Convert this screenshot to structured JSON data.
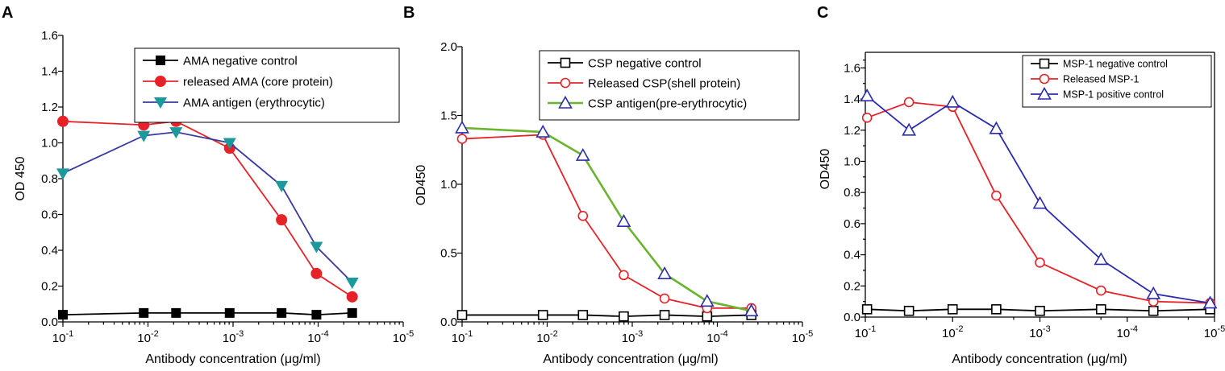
{
  "chart_data": [
    {
      "type": "line",
      "panel_label": "A",
      "xlabel": "Antibody concentration (μg/ml)",
      "ylabel": "OD 450",
      "xscale": "log-reversed",
      "xlim_exp": [
        -1,
        -5
      ],
      "x_tick_labels": [
        "10-1",
        "10-2",
        "10-3",
        "10-4",
        "10-5"
      ],
      "ylim": [
        0,
        1.6
      ],
      "y_ticks": [
        0.0,
        0.2,
        0.4,
        0.6,
        0.8,
        1.0,
        1.2,
        1.4,
        1.6
      ],
      "y_tick_labels": [
        "0.0",
        "0.2",
        "0.4",
        "0.6",
        "0.8",
        "1.0",
        "1.2",
        "1.4",
        "1.6"
      ],
      "legend_position": "top-right",
      "series": [
        {
          "name": "AMA negative control",
          "color": "#000000",
          "marker": "square-filled",
          "x_exp": [
            -1,
            -1.95,
            -2.33,
            -2.96,
            -3.57,
            -3.98,
            -4.4
          ],
          "values": [
            0.04,
            0.05,
            0.05,
            0.05,
            0.05,
            0.04,
            0.05
          ]
        },
        {
          "name": "released AMA (core protein)",
          "color": "#e62228",
          "marker": "circle-filled",
          "x_exp": [
            -1,
            -1.95,
            -2.33,
            -2.96,
            -3.57,
            -3.98,
            -4.4
          ],
          "values": [
            1.12,
            1.1,
            1.12,
            0.97,
            0.57,
            0.27,
            0.14
          ]
        },
        {
          "name": "AMA antigen (erythrocytic)",
          "color": "#3a3aa0",
          "marker": "triangle-down-filled",
          "marker_color": "#1a9a9a",
          "x_exp": [
            -1,
            -1.95,
            -2.33,
            -2.96,
            -3.57,
            -3.98,
            -4.4
          ],
          "values": [
            0.83,
            1.04,
            1.06,
            1.0,
            0.76,
            0.42,
            0.22
          ]
        }
      ]
    },
    {
      "type": "line",
      "panel_label": "B",
      "xlabel": "Antibody concentration (μg/ml)",
      "ylabel": "OD450",
      "xscale": "log-reversed",
      "xlim_exp": [
        -1,
        -5
      ],
      "x_tick_labels": [
        "10-1",
        "10-2",
        "10-3",
        "10-4",
        "10-5"
      ],
      "ylim": [
        0,
        2.0
      ],
      "y_ticks": [
        0.0,
        0.5,
        1.0,
        1.5,
        2.0
      ],
      "y_tick_labels": [
        "0.0",
        "0.5",
        "1.0",
        "1.5",
        "2.0"
      ],
      "legend_position": "top-right",
      "series": [
        {
          "name": "CSP negative control",
          "color": "#000000",
          "marker": "square-open",
          "x_exp": [
            -1,
            -1.95,
            -2.42,
            -2.9,
            -3.38,
            -3.88,
            -4.4
          ],
          "values": [
            0.05,
            0.05,
            0.05,
            0.04,
            0.05,
            0.04,
            0.05
          ]
        },
        {
          "name": "Released CSP(shell protein)",
          "color": "#e62228",
          "marker": "circle-open",
          "x_exp": [
            -1,
            -1.95,
            -2.42,
            -2.9,
            -3.38,
            -3.88,
            -4.4
          ],
          "values": [
            1.33,
            1.36,
            0.77,
            0.34,
            0.17,
            0.1,
            0.1
          ]
        },
        {
          "name": "CSP antigen(pre-erythrocytic)",
          "color": "#6ab42d",
          "marker": "triangle-up-open",
          "marker_color": "#2b2bb0",
          "x_exp": [
            -1,
            -1.95,
            -2.42,
            -2.9,
            -3.38,
            -3.88,
            -4.4
          ],
          "values": [
            1.41,
            1.38,
            1.21,
            0.73,
            0.35,
            0.15,
            0.08
          ]
        }
      ]
    },
    {
      "type": "line",
      "panel_label": "C",
      "xlabel": "Antibody concentration (μg/ml)",
      "ylabel": "OD450",
      "xscale": "log-reversed",
      "xlim_exp": [
        -1,
        -5
      ],
      "x_tick_labels": [
        "10-1",
        "10-2",
        "10-3",
        "10-4",
        "10-5"
      ],
      "ylim": [
        0,
        1.7
      ],
      "y_ticks": [
        0.0,
        0.2,
        0.4,
        0.6,
        0.8,
        1.0,
        1.2,
        1.4,
        1.6
      ],
      "y_tick_labels": [
        "0.0",
        "0.2",
        "0.4",
        "0.6",
        "0.8",
        "1.0",
        "1.2",
        "1.4",
        "1.6"
      ],
      "legend_position": "top-right",
      "series": [
        {
          "name": "MSP-1 negative control",
          "color": "#000000",
          "marker": "square-open",
          "x_exp": [
            -1.02,
            -1.5,
            -2.0,
            -2.5,
            -3.0,
            -3.7,
            -4.3,
            -4.95
          ],
          "values": [
            0.05,
            0.04,
            0.05,
            0.05,
            0.04,
            0.05,
            0.04,
            0.05
          ]
        },
        {
          "name": "Released MSP-1",
          "color": "#e62228",
          "marker": "circle-open",
          "x_exp": [
            -1.02,
            -1.5,
            -2.0,
            -2.5,
            -3.0,
            -3.7,
            -4.3,
            -4.95
          ],
          "values": [
            1.28,
            1.38,
            1.35,
            0.78,
            0.35,
            0.17,
            0.1,
            0.09
          ]
        },
        {
          "name": "MSP-1 positive control",
          "color": "#2b2bb0",
          "marker": "triangle-up-open",
          "x_exp": [
            -1.02,
            -1.5,
            -2.0,
            -2.5,
            -3.0,
            -3.7,
            -4.3,
            -4.95
          ],
          "values": [
            1.42,
            1.2,
            1.38,
            1.21,
            0.73,
            0.37,
            0.15,
            0.09
          ]
        }
      ]
    }
  ]
}
